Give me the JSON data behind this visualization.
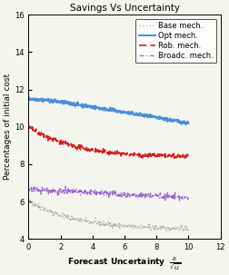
{
  "title": "Savings Vs Uncertainty",
  "ylabel": "Percentages of initial cost",
  "xlim": [
    0,
    12
  ],
  "ylim": [
    4,
    16
  ],
  "xticks": [
    0,
    2,
    4,
    6,
    8,
    10,
    12
  ],
  "yticks": [
    4,
    6,
    8,
    10,
    12,
    14,
    16
  ],
  "lines": [
    {
      "label": "Base mech.",
      "color": "#aaaaaa",
      "linestyle": "dotted",
      "linewidth": 0.9,
      "start_y": 6.05,
      "end_y": 4.55,
      "noise": 0.07,
      "shape": "fast_then_flat"
    },
    {
      "label": "Opt mech.",
      "color": "#4a90d9",
      "linestyle": "solid",
      "linewidth": 1.4,
      "start_y": 11.65,
      "end_y": 10.2,
      "noise": 0.05,
      "shape": "gentle_decrease"
    },
    {
      "label": "Rob. mech.",
      "color": "#cc2222",
      "linestyle": "dashed",
      "linewidth": 1.2,
      "start_y": 10.0,
      "end_y": 8.4,
      "noise": 0.06,
      "shape": "fast_then_flat"
    },
    {
      "label": "Broadc. mech.",
      "color": "#9966cc",
      "linestyle": "dashdot",
      "linewidth": 0.9,
      "start_y": 6.65,
      "end_y": 6.2,
      "noise": 0.08,
      "shape": "flat_slight"
    }
  ],
  "background_color": "#f5f5f0",
  "legend_fontsize": 6.0,
  "title_fontsize": 7.5,
  "axis_fontsize": 6.5,
  "tick_fontsize": 6.0
}
